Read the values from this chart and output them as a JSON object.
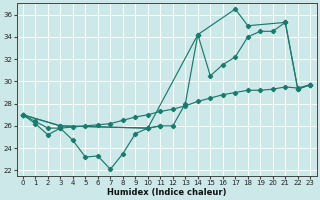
{
  "xlabel": "Humidex (Indice chaleur)",
  "bg_color": "#cde8e8",
  "grid_color": "#ffffff",
  "line_color": "#1a7a6e",
  "xlim": [
    -0.5,
    23.5
  ],
  "ylim": [
    21.5,
    37.0
  ],
  "xticks": [
    0,
    1,
    2,
    3,
    4,
    5,
    6,
    7,
    8,
    9,
    10,
    11,
    12,
    13,
    14,
    15,
    16,
    17,
    18,
    19,
    20,
    21,
    22,
    23
  ],
  "yticks": [
    22,
    24,
    26,
    28,
    30,
    32,
    34,
    36
  ],
  "series1_x": [
    0,
    1,
    2,
    3,
    4,
    5,
    6,
    7,
    8,
    9,
    10,
    11
  ],
  "series1_y": [
    27.0,
    26.2,
    25.2,
    25.8,
    24.7,
    23.2,
    23.3,
    22.1,
    23.5,
    25.3,
    25.8,
    26.0
  ],
  "series2_x": [
    0,
    3,
    10,
    11,
    12,
    13,
    14,
    15,
    16,
    17,
    18,
    19,
    20,
    21,
    22,
    23
  ],
  "series2_y": [
    27.0,
    26.0,
    25.8,
    26.0,
    26.0,
    28.0,
    34.2,
    30.5,
    31.5,
    32.2,
    34.0,
    34.5,
    34.5,
    35.3,
    29.3,
    29.7
  ],
  "series3_x": [
    0,
    3,
    10,
    14,
    17,
    18,
    21,
    22,
    23
  ],
  "series3_y": [
    27.0,
    26.0,
    25.8,
    34.2,
    36.5,
    35.0,
    35.3,
    29.3,
    29.7
  ],
  "series4_x": [
    0,
    1,
    2,
    3,
    4,
    5,
    6,
    7,
    8,
    9,
    10,
    11,
    12,
    13,
    14,
    15,
    16,
    17,
    18,
    19,
    20,
    21,
    22,
    23
  ],
  "series4_y": [
    27.0,
    26.4,
    25.8,
    25.8,
    25.9,
    26.0,
    26.1,
    26.2,
    26.5,
    26.8,
    27.0,
    27.3,
    27.5,
    27.8,
    28.2,
    28.5,
    28.8,
    29.0,
    29.2,
    29.2,
    29.3,
    29.5,
    29.4,
    29.7
  ]
}
